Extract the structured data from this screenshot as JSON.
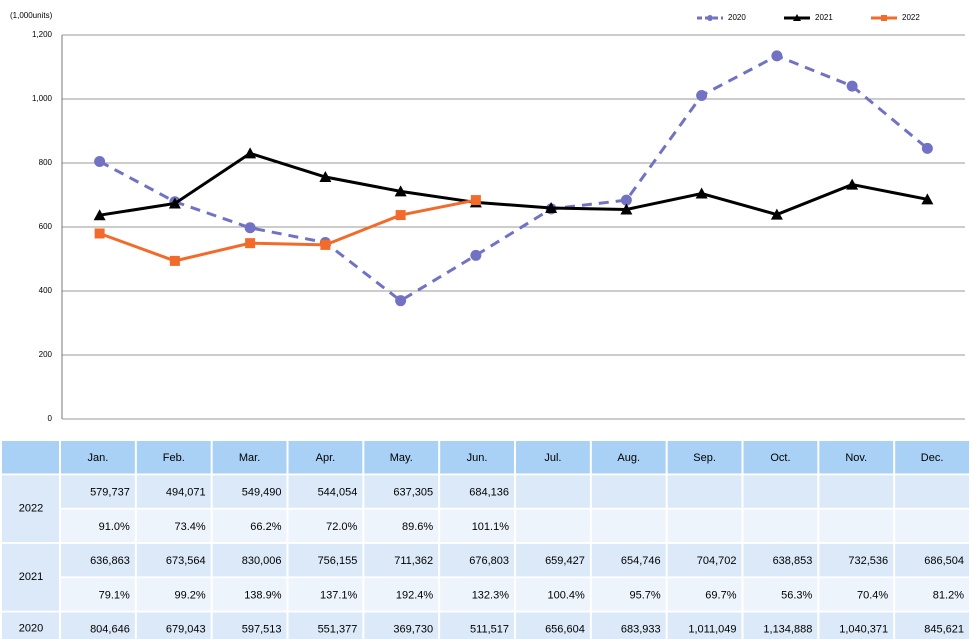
{
  "chart_data": {
    "type": "line",
    "unit_label": "(1,000units)",
    "categories": [
      "Jan.",
      "Feb.",
      "Mar.",
      "Apr.",
      "May.",
      "Jun.",
      "Jul.",
      "Aug.",
      "Sep.",
      "Oct.",
      "Nov.",
      "Dec."
    ],
    "ylim": [
      0,
      1200
    ],
    "yticks": [
      0,
      200,
      400,
      600,
      800,
      {
        "value": 1000,
        "label": "1,000"
      },
      {
        "value": 1200,
        "label": "1,200"
      }
    ],
    "grid": true,
    "legend": "top-right",
    "series": [
      {
        "name": "2020",
        "color": "#7272c4",
        "dash": true,
        "marker": "circle",
        "values": [
          804.646,
          679.043,
          597.513,
          551.377,
          369.73,
          511.517,
          656.604,
          683.933,
          1011.049,
          1134.888,
          1040.371,
          845.621
        ]
      },
      {
        "name": "2021",
        "color": "#000000",
        "dash": false,
        "marker": "triangle",
        "values": [
          636.863,
          673.564,
          830.006,
          756.155,
          711.362,
          676.803,
          659.427,
          654.746,
          704.702,
          638.853,
          732.536,
          686.504
        ]
      },
      {
        "name": "2022",
        "color": "#f26b2a",
        "dash": false,
        "marker": "square",
        "values": [
          579.737,
          494.071,
          549.49,
          544.054,
          637.305,
          684.136,
          null,
          null,
          null,
          null,
          null,
          null
        ]
      }
    ]
  },
  "table": {
    "months": [
      "Jan.",
      "Feb.",
      "Mar.",
      "Apr.",
      "May.",
      "Jun.",
      "Jul.",
      "Aug.",
      "Sep.",
      "Oct.",
      "Nov.",
      "Dec."
    ],
    "rows": [
      {
        "year": "2022",
        "volumes": [
          "579,737",
          "494,071",
          "549,490",
          "544,054",
          "637,305",
          "684,136"
        ],
        "ratios": [
          "91.0%",
          "73.4%",
          "66.2%",
          "72.0%",
          "89.6%",
          "101.1%"
        ]
      },
      {
        "year": "2021",
        "volumes": [
          "636,863",
          "673,564",
          "830,006",
          "756,155",
          "711,362",
          "676,803",
          "659,427",
          "654,746",
          "704,702",
          "638,853",
          "732,536",
          "686,504"
        ],
        "ratios": [
          "79.1%",
          "99.2%",
          "138.9%",
          "137.1%",
          "192.4%",
          "132.3%",
          "100.4%",
          "95.7%",
          "69.7%",
          "56.3%",
          "70.4%",
          "81.2%"
        ]
      },
      {
        "year": "2020",
        "volumes": [
          "804,646",
          "679,043",
          "597,513",
          "551,377",
          "369,730",
          "511,517",
          "656,604",
          "683,933",
          "1,011,049",
          "1,134,888",
          "1,040,371",
          "845,621"
        ]
      }
    ]
  }
}
